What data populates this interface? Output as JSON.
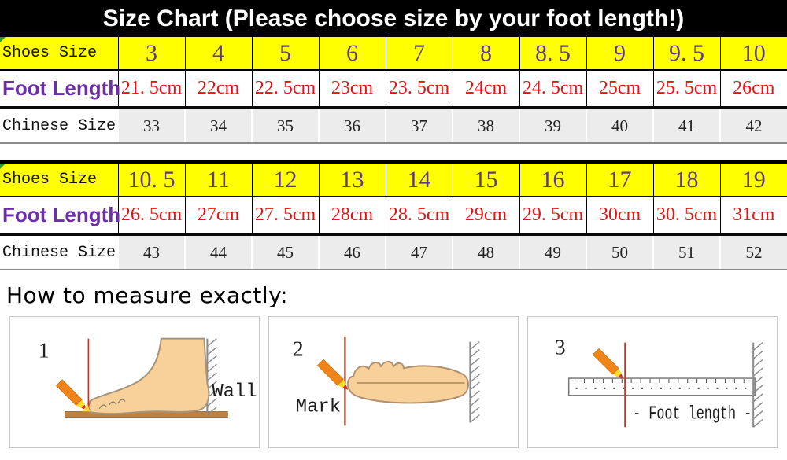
{
  "title": "Size Chart (Please choose size by your foot length!)",
  "tables": [
    {
      "rows": [
        {
          "label": "Shoes Size",
          "values": [
            "3",
            "4",
            "5",
            "6",
            "7",
            "8",
            "8. 5",
            "9",
            "9. 5",
            "10"
          ]
        },
        {
          "label": "Foot Length",
          "values": [
            "21. 5cm",
            "22cm",
            "22. 5cm",
            "23cm",
            "23. 5cm",
            "24cm",
            "24. 5cm",
            "25cm",
            "25. 5cm",
            "26cm"
          ]
        },
        {
          "label": "Chinese Size",
          "values": [
            "33",
            "34",
            "35",
            "36",
            "37",
            "38",
            "39",
            "40",
            "41",
            "42"
          ]
        }
      ]
    },
    {
      "rows": [
        {
          "label": "Shoes Size",
          "values": [
            "10. 5",
            "11",
            "12",
            "13",
            "14",
            "15",
            "16",
            "17",
            "18",
            "19"
          ]
        },
        {
          "label": "Foot Length",
          "values": [
            "26. 5cm",
            "27cm",
            "27. 5cm",
            "28cm",
            "28. 5cm",
            "29cm",
            "29. 5cm",
            "30cm",
            "30. 5cm",
            "31cm"
          ]
        },
        {
          "label": "Chinese Size",
          "values": [
            "43",
            "44",
            "45",
            "46",
            "47",
            "48",
            "49",
            "50",
            "51",
            "52"
          ]
        }
      ]
    }
  ],
  "measure": {
    "heading": "How to measure exactly:",
    "panels": [
      {
        "number": "1",
        "label": "Wall"
      },
      {
        "number": "2",
        "label": "Mark"
      },
      {
        "number": "3",
        "label": "- Foot length -"
      }
    ]
  },
  "colors": {
    "title_bg": "#000000",
    "title_text": "#FFFFFF",
    "shoes_row_bg": "#FFFF00",
    "shoes_number_purple": "#5E3A8E",
    "foot_length_label_purple": "#6B2FA8",
    "foot_length_value_red": "#EC1111",
    "chinese_cell_gray": "#ECECEC",
    "corner_mark_green": "#2A9A32",
    "skin": "#F8D09A",
    "pencil_orange": "#F08418",
    "floor_brown": "#C08040"
  }
}
